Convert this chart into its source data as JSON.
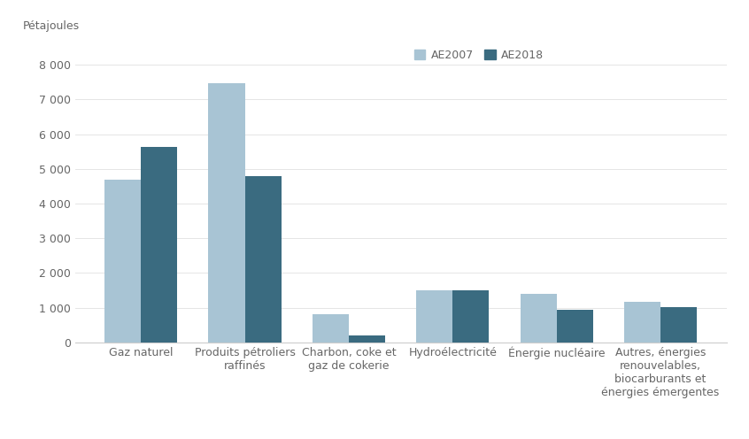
{
  "categories": [
    "Gaz naturel",
    "Produits pétroliers\nraffinés",
    "Charbon, coke et\ngaz de cokerie",
    "Hydroélectricité",
    "Énergie nucléaire",
    "Autres, énergies\nrenouvelables,\nbiocarburants et\nénergies émergentes"
  ],
  "ae2007": [
    4680,
    7480,
    820,
    1500,
    1400,
    1160
  ],
  "ae2018": [
    5620,
    4800,
    200,
    1510,
    950,
    1020
  ],
  "color_ae2007": "#a8c4d4",
  "color_ae2018": "#3a6b80",
  "ylabel": "Pétajoules",
  "ylim": [
    0,
    8600
  ],
  "yticks": [
    0,
    1000,
    2000,
    3000,
    4000,
    5000,
    6000,
    7000,
    8000
  ],
  "ytick_labels": [
    "0",
    "1 000",
    "2 000",
    "3 000",
    "4 000",
    "5 000",
    "6 000",
    "7 000",
    "8 000"
  ],
  "legend_ae2007": "AE2007",
  "legend_ae2018": "AE2018",
  "background_color": "#ffffff",
  "bar_width": 0.35,
  "axis_fontsize": 9,
  "tick_fontsize": 9,
  "legend_fontsize": 9
}
